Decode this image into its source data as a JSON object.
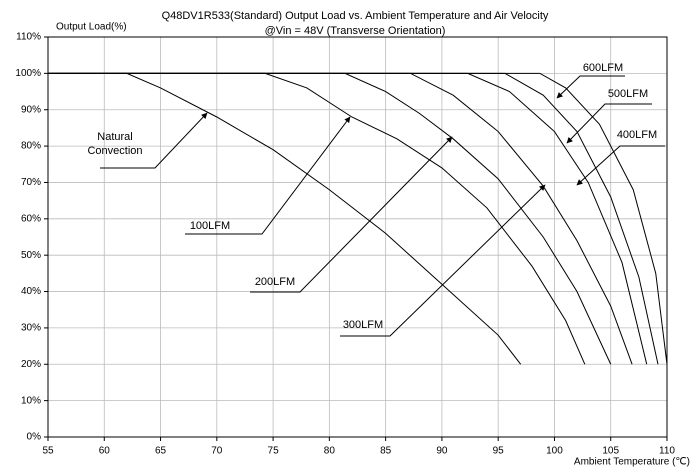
{
  "chart_data": {
    "type": "line",
    "title": "Q48DV1R533(Standard)  Output Load vs. Ambient Temperature and Air Velocity",
    "subtitle": "@Vin = 48V (Transverse Orientation)",
    "y_label": "Output Load(%)",
    "x_label": "Ambient Temperature (℃)",
    "xlim": [
      55,
      110
    ],
    "xticks": [
      55,
      60,
      65,
      70,
      75,
      80,
      85,
      90,
      95,
      100,
      105,
      110
    ],
    "ylim": [
      0,
      110
    ],
    "yticks": [
      {
        "value": 0,
        "label": "0%"
      },
      {
        "value": 10,
        "label": "10%"
      },
      {
        "value": 20,
        "label": "20%"
      },
      {
        "value": 30,
        "label": "30%"
      },
      {
        "value": 40,
        "label": "40%"
      },
      {
        "value": 50,
        "label": "50%"
      },
      {
        "value": 60,
        "label": "60%"
      },
      {
        "value": 70,
        "label": "70%"
      },
      {
        "value": 80,
        "label": "80%"
      },
      {
        "value": 90,
        "label": "90%"
      },
      {
        "value": 100,
        "label": "100%"
      },
      {
        "value": 110,
        "label": "110%"
      }
    ],
    "grid": true,
    "color": "#000000",
    "series": [
      {
        "name": "Natural Convection",
        "x": [
          55,
          62,
          65,
          70,
          75,
          80,
          85,
          90,
          95,
          97
        ],
        "values": [
          100,
          100,
          96,
          88,
          79,
          68,
          56,
          42,
          28,
          20
        ]
      },
      {
        "name": "100LFM",
        "x": [
          55,
          74.3,
          78,
          82,
          86,
          90,
          94,
          98,
          101,
          102.7
        ],
        "values": [
          100,
          100,
          96,
          88,
          82,
          74,
          63,
          47,
          32,
          20
        ]
      },
      {
        "name": "200LFM",
        "x": [
          55,
          81.4,
          85,
          88,
          91,
          95,
          99,
          102,
          105
        ],
        "values": [
          100,
          100,
          95,
          89,
          82,
          71,
          55,
          40,
          20
        ]
      },
      {
        "name": "300LFM",
        "x": [
          55,
          87.2,
          91,
          95,
          99,
          102,
          105,
          106.9
        ],
        "values": [
          100,
          100,
          94,
          84,
          69,
          54,
          36,
          20
        ]
      },
      {
        "name": "400LFM",
        "x": [
          55,
          92.3,
          96,
          100,
          103,
          106,
          108.2
        ],
        "values": [
          100,
          100,
          95,
          84,
          70,
          48,
          20
        ]
      },
      {
        "name": "500LFM",
        "x": [
          55,
          95.6,
          99,
          102,
          105,
          107.5,
          109.2
        ],
        "values": [
          100,
          100,
          94,
          84,
          66,
          44,
          20
        ]
      },
      {
        "name": "600LFM",
        "x": [
          55,
          98.7,
          101,
          104,
          107,
          109,
          110
        ],
        "values": [
          100,
          100,
          96,
          86,
          68,
          45,
          20
        ]
      }
    ]
  }
}
